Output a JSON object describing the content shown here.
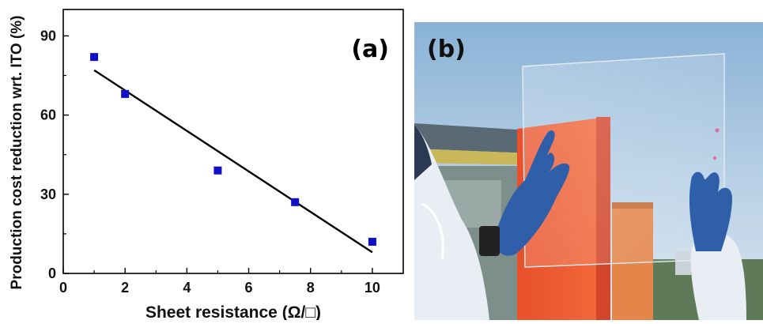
{
  "chart_data": {
    "type": "scatter",
    "panel_label": "(a)",
    "xlabel": "Sheet resistance (Ω/□)",
    "ylabel": "Production cost reduction wrt. ITO (%)",
    "xlim": [
      0,
      11
    ],
    "ylim": [
      0,
      100
    ],
    "xticks": [
      0,
      2,
      4,
      6,
      8,
      10
    ],
    "yticks": [
      0,
      30,
      60,
      90
    ],
    "grid": false,
    "series": [
      {
        "kind": "points",
        "marker": "square",
        "color": "#1010c8",
        "x": [
          1,
          2,
          5,
          7.5,
          10
        ],
        "y": [
          82,
          68,
          39,
          27,
          12
        ]
      },
      {
        "kind": "fit-line",
        "color": "#000000",
        "x": [
          1,
          10
        ],
        "y": [
          77,
          8
        ]
      }
    ]
  },
  "photo": {
    "panel_label": "(b)",
    "description_icon": "photo-transparent-electrode-held-by-gloved-hands"
  }
}
